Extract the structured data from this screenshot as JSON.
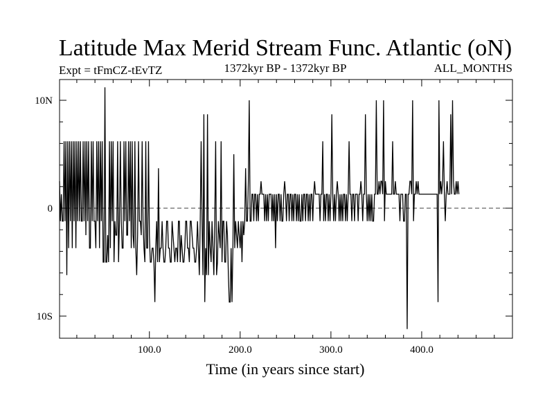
{
  "chart_data": {
    "type": "line",
    "title": "Latitude Max Merid Stream Func. Atlantic (oN)",
    "subtitle_left": "Expt = tFmCZ-tEvTZ",
    "subtitle_center": "1372kyr BP - 1372kyr BP",
    "subtitle_right": "ALL_MONTHS",
    "xlabel": "Time (in years since start)",
    "ylabel": "",
    "xlim": [
      1,
      500
    ],
    "ylim": [
      -12,
      12
    ],
    "x_ticks": [
      {
        "value": 100,
        "label": "100.0"
      },
      {
        "value": 200,
        "label": "200.0"
      },
      {
        "value": 300,
        "label": "300.0"
      },
      {
        "value": 400,
        "label": "400.0"
      }
    ],
    "y_ticks": [
      {
        "value": 10,
        "label": "10N"
      },
      {
        "value": 0,
        "label": "0"
      },
      {
        "value": -10,
        "label": "10S"
      }
    ],
    "zero_line": "dashed",
    "series": [
      {
        "name": "Latitude Max Merid Stream Func. Atlantic",
        "x_start": 1,
        "x_step": 1,
        "values": [
          2.5,
          -1.2,
          1.3,
          -1.2,
          -1.2,
          6.2,
          -1.2,
          6.2,
          -6.2,
          6.2,
          -3.7,
          6.2,
          -1.2,
          6.2,
          -3.7,
          6.2,
          -1.2,
          6.2,
          -3.7,
          6.2,
          -1.2,
          6.2,
          -1.2,
          6.2,
          -1.2,
          -1.2,
          6.2,
          -1.2,
          6.2,
          -2.5,
          6.2,
          -1.2,
          6.2,
          -3.7,
          -3.7,
          6.2,
          -1.2,
          6.2,
          -1.2,
          -1.2,
          -3.7,
          6.2,
          -1.2,
          6.2,
          -3.7,
          6.2,
          -1.2,
          6.2,
          -5.0,
          -5.0,
          11.2,
          -5.0,
          -5.0,
          -2.5,
          -5.0,
          6.2,
          -3.7,
          6.2,
          -1.2,
          6.2,
          -5.0,
          -1.2,
          -2.5,
          -2.5,
          6.2,
          -5.0,
          -1.2,
          6.2,
          -1.2,
          -3.7,
          -3.7,
          6.2,
          -1.2,
          6.2,
          -2.5,
          -2.5,
          6.2,
          -1.2,
          6.2,
          -3.7,
          6.2,
          -2.5,
          -3.7,
          6.2,
          -3.7,
          -6.2,
          -2.5,
          6.2,
          -1.2,
          -1.2,
          -2.5,
          6.2,
          -1.2,
          -3.7,
          -5.0,
          6.2,
          -3.7,
          -3.7,
          6.2,
          -2.5,
          -5.0,
          -5.0,
          -3.7,
          -3.7,
          -5.0,
          -8.7,
          -3.7,
          -1.2,
          -5.0,
          3.7,
          -5.0,
          -3.7,
          -3.7,
          -1.2,
          -3.7,
          -5.0,
          -5.0,
          -3.7,
          -1.2,
          -1.2,
          -3.7,
          -3.7,
          -5.0,
          -5.0,
          -1.2,
          -2.5,
          -3.7,
          -5.0,
          -3.7,
          -3.7,
          -5.0,
          -1.2,
          -1.2,
          -5.0,
          -2.5,
          -3.7,
          -5.0,
          -5.0,
          -3.7,
          -1.2,
          -1.2,
          -3.7,
          -3.7,
          -5.0,
          -1.2,
          -1.2,
          -2.5,
          -3.7,
          -3.7,
          -5.0,
          -5.0,
          -3.7,
          -1.2,
          -3.7,
          -6.2,
          -1.2,
          6.2,
          -1.2,
          -6.2,
          8.7,
          -8.7,
          -3.7,
          -6.2,
          8.7,
          -6.2,
          -1.2,
          -3.7,
          -5.0,
          -1.2,
          -3.7,
          -6.2,
          -1.2,
          6.2,
          -6.2,
          -5.0,
          -1.2,
          -2.5,
          -3.7,
          6.2,
          -5.0,
          -1.2,
          -1.2,
          -5.0,
          -5.0,
          -1.2,
          -2.5,
          -6.2,
          -8.7,
          -8.7,
          -3.7,
          -8.7,
          -3.7,
          5.0,
          -3.7,
          -1.2,
          -2.5,
          -3.7,
          -1.2,
          -2.5,
          -3.7,
          -1.2,
          -5.0,
          -1.2,
          -2.5,
          -1.2,
          3.7,
          -1.2,
          -1.2,
          2.5,
          10.0,
          -1.2,
          -1.2,
          1.3,
          1.3,
          -1.2,
          1.3,
          1.3,
          -1.2,
          1.3,
          -1.2,
          1.3,
          1.3,
          2.5,
          1.3,
          1.3,
          1.3,
          -1.2,
          1.3,
          -1.2,
          1.3,
          -1.2,
          1.3,
          1.3,
          1.3,
          -1.2,
          1.3,
          -1.2,
          1.3,
          -3.7,
          1.3,
          -1.2,
          1.3,
          1.3,
          -1.2,
          1.3,
          -1.2,
          -1.2,
          1.3,
          2.5,
          1.3,
          -1.2,
          1.3,
          1.3,
          -1.2,
          1.3,
          1.3,
          -1.2,
          1.3,
          -1.2,
          1.3,
          1.3,
          -1.2,
          1.3,
          -1.2,
          1.3,
          -1.2,
          -1.2,
          1.3,
          -1.2,
          1.3,
          1.3,
          -1.2,
          1.3,
          1.3,
          -1.2,
          1.3,
          -1.2,
          1.3,
          1.3,
          -1.2,
          1.3,
          2.5,
          1.3,
          1.3,
          1.3,
          1.3,
          1.3,
          -1.2,
          1.3,
          1.3,
          6.2,
          -1.2,
          1.3,
          -1.2,
          1.3,
          1.3,
          -1.2,
          1.3,
          -1.2,
          1.3,
          8.7,
          1.3,
          -1.2,
          1.3,
          -1.2,
          1.3,
          2.5,
          1.3,
          -1.2,
          1.3,
          -1.2,
          1.3,
          -1.2,
          1.3,
          1.3,
          -1.2,
          1.3,
          -1.2,
          1.3,
          6.2,
          1.3,
          1.3,
          -1.2,
          1.3,
          1.3,
          -1.2,
          1.3,
          1.3,
          1.3,
          -1.2,
          1.3,
          1.3,
          2.5,
          1.3,
          -1.2,
          1.3,
          1.3,
          8.7,
          1.3,
          -1.2,
          1.3,
          -1.2,
          1.3,
          -1.2,
          1.3,
          -1.2,
          -1.2,
          1.3,
          1.3,
          10.0,
          1.3,
          1.3,
          2.5,
          1.3,
          2.5,
          2.5,
          1.3,
          10.0,
          -1.2,
          2.5,
          1.3,
          1.3,
          1.3,
          1.3,
          1.3,
          1.3,
          1.3,
          6.2,
          1.3,
          1.3,
          2.5,
          1.3,
          1.3,
          1.3,
          1.3,
          -1.2,
          1.3,
          1.3,
          1.3,
          -1.2,
          -1.2,
          1.3,
          1.3,
          -11.2,
          1.3,
          1.3,
          2.5,
          2.5,
          1.3,
          10.0,
          -1.2,
          1.3,
          1.3,
          2.5,
          1.3,
          2.5,
          1.3,
          1.3,
          1.3,
          1.3,
          1.3,
          1.3,
          1.3,
          1.3,
          1.3,
          1.3,
          1.3,
          1.3,
          1.3,
          1.3,
          1.3,
          1.3,
          1.3,
          1.3,
          1.3,
          1.3,
          1.3,
          -8.7,
          10.0,
          1.3,
          2.5,
          1.3,
          2.5,
          6.2,
          1.3,
          -1.2,
          1.3,
          2.5,
          1.3,
          1.3,
          1.3,
          8.7,
          1.3,
          10.0,
          2.5,
          1.3,
          1.3,
          2.5,
          1.3,
          2.5,
          1.3
        ]
      }
    ]
  }
}
